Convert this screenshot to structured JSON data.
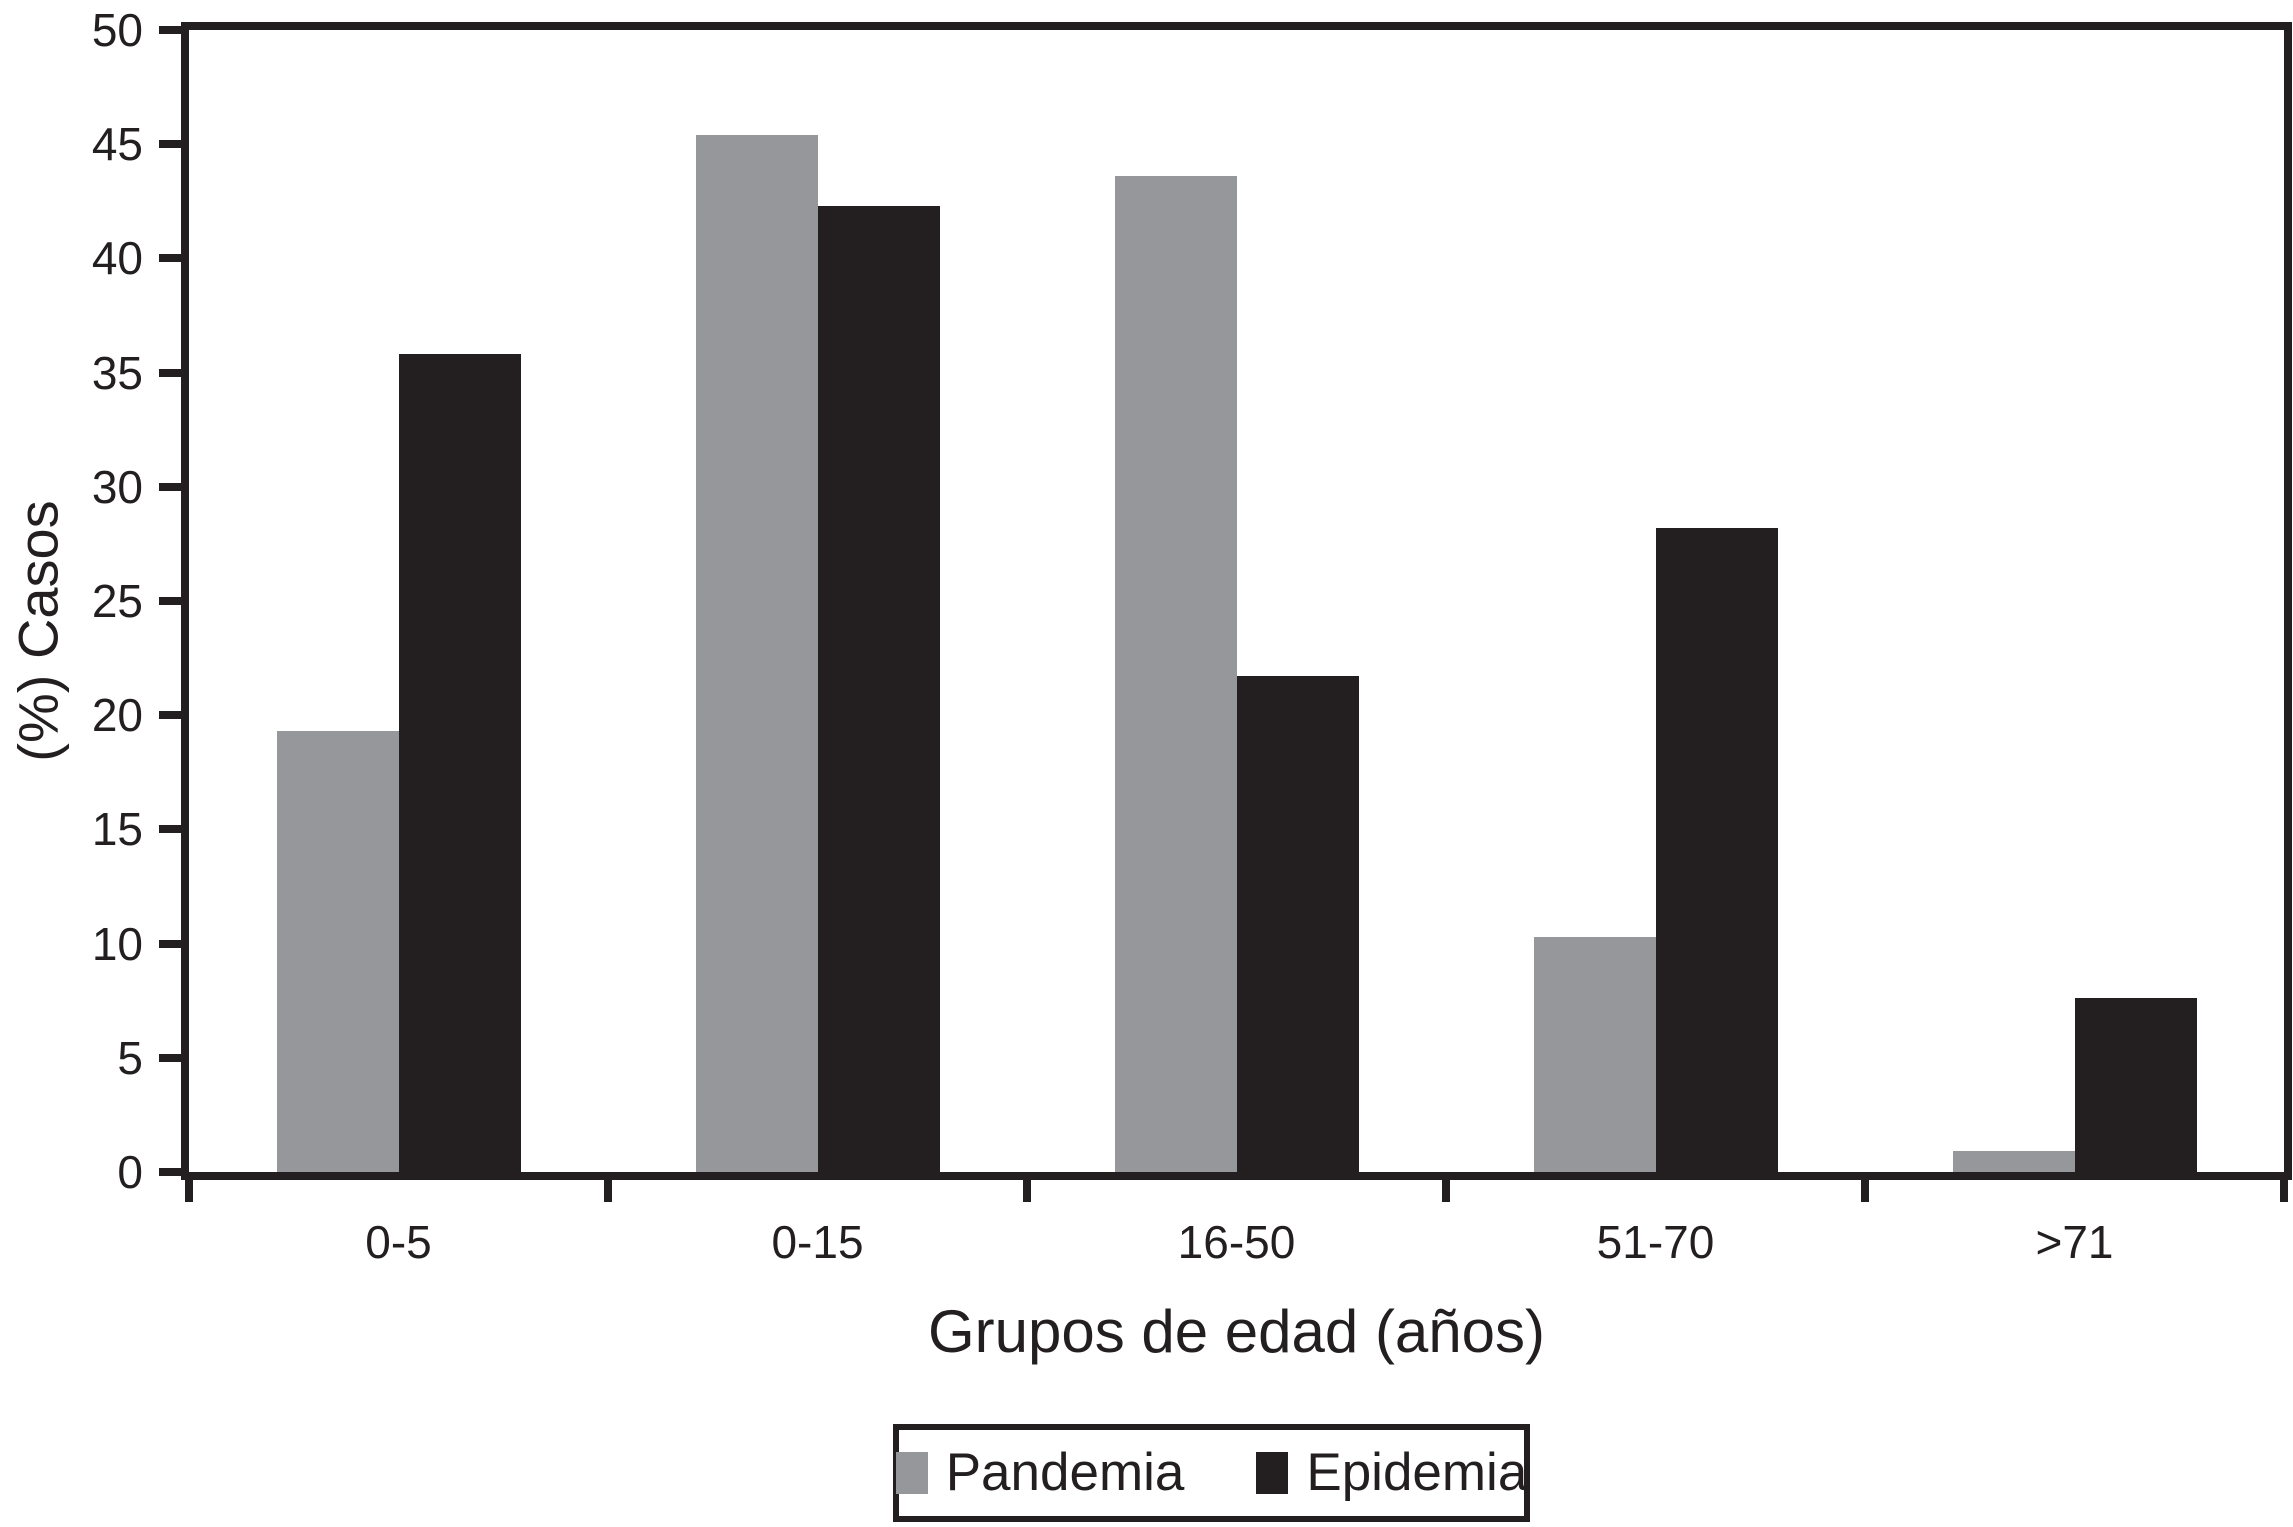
{
  "chart_data": {
    "type": "bar",
    "title": "",
    "categories": [
      "0-5",
      "0-15",
      "16-50",
      "51-70",
      ">71"
    ],
    "series": [
      {
        "name": "Pandemia",
        "color": "#95979a",
        "values": [
          19.3,
          45.4,
          43.6,
          10.3,
          0.9
        ]
      },
      {
        "name": "Epidemia",
        "color": "#231f20",
        "values": [
          35.8,
          42.3,
          21.7,
          28.2,
          7.6
        ]
      }
    ],
    "xlabel": "Grupos de edad (años)",
    "ylabel": "(%) Casos",
    "ylim": [
      0,
      50
    ],
    "yticks": [
      0,
      5,
      10,
      15,
      20,
      25,
      30,
      35,
      40,
      45,
      50
    ],
    "grid": false,
    "legend_position": "bottom",
    "axis_color": "#231f20",
    "background": "#ffffff"
  }
}
